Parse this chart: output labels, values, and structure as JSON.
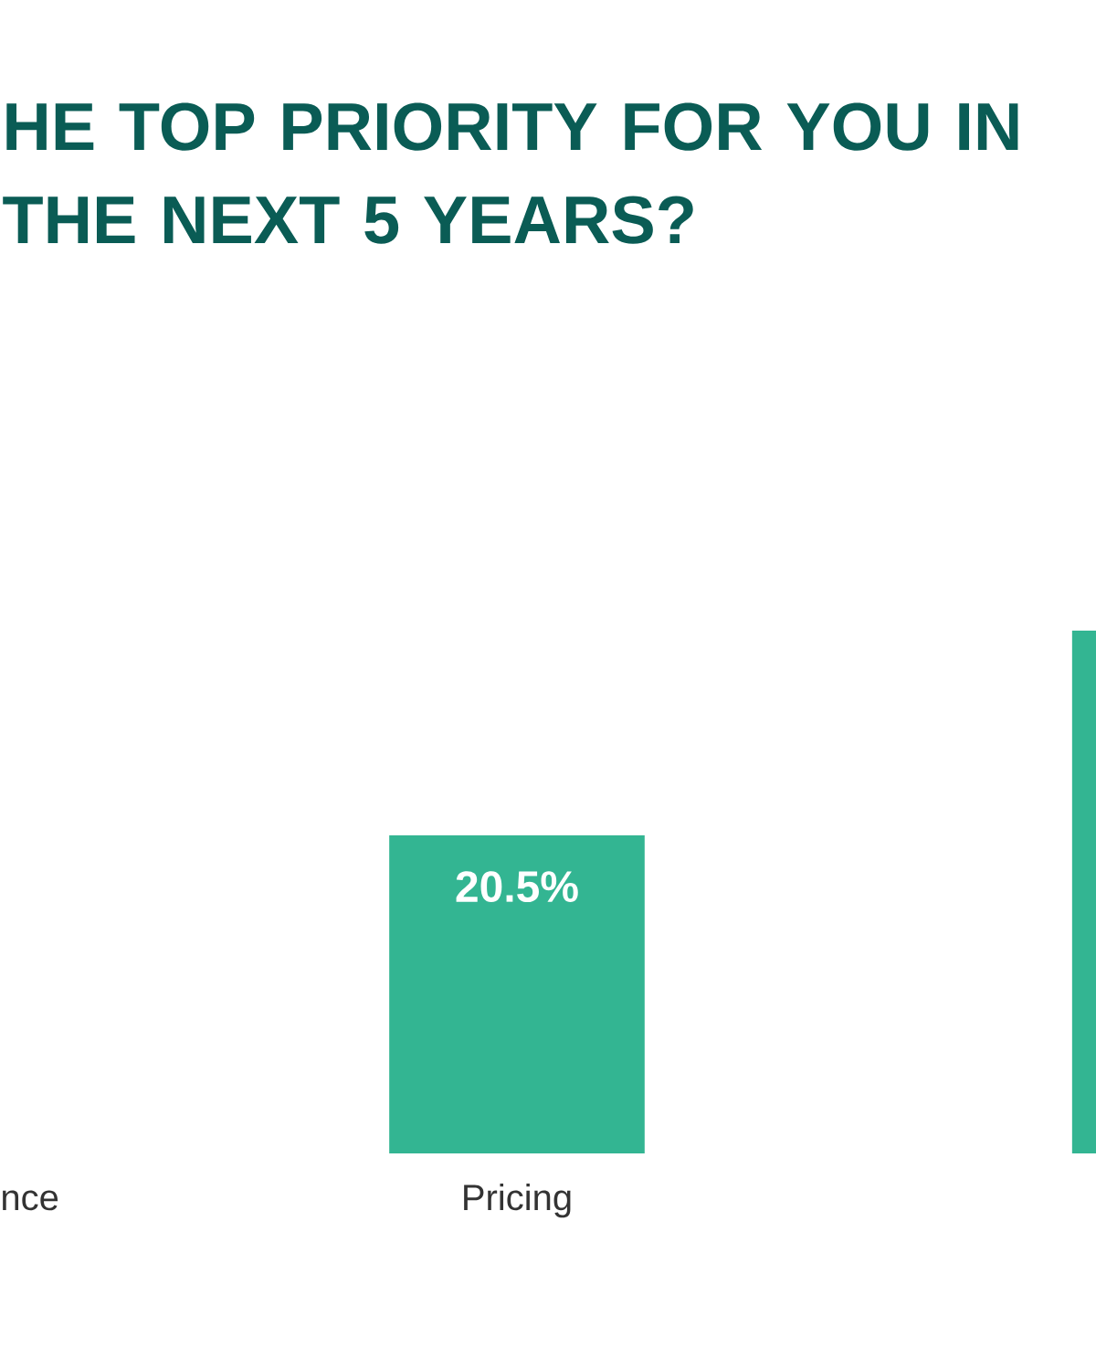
{
  "chart_data": {
    "type": "bar",
    "title": "HE TOP PRIORITY FOR YOU IN THE NEXT 5 YEARS?",
    "categories": [
      "nce",
      "Pricing",
      null
    ],
    "values": [
      null,
      20.5,
      33.7
    ],
    "value_labels": [
      null,
      "20.5%",
      null
    ],
    "color": "#33b592"
  }
}
